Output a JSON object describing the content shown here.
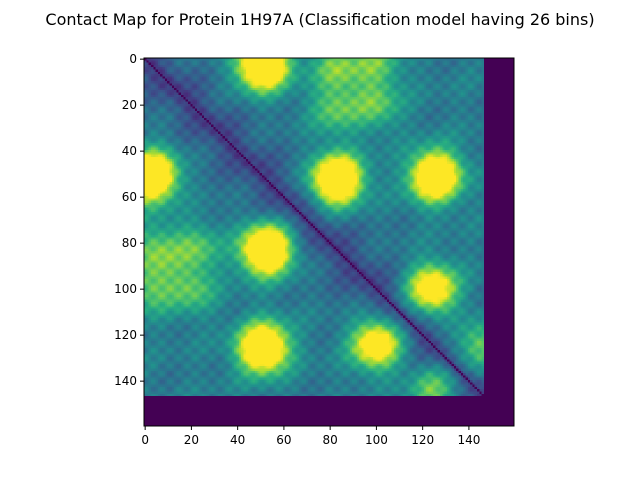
{
  "chart_data": {
    "type": "heatmap",
    "title": "Contact Map for Protein 1H97A (Classification model having 26 bins)",
    "xlabel": "",
    "ylabel": "",
    "matrix_size": 160,
    "data_extent": 147,
    "padding_value": 0,
    "diagonal_value": 0,
    "value_range": [
      0,
      25
    ],
    "colormap": "viridis",
    "xlim": [
      -0.5,
      159.5
    ],
    "ylim": [
      159.5,
      -0.5
    ],
    "y_axis_inverted": true,
    "grid": false,
    "x_ticks": [
      0,
      20,
      40,
      60,
      80,
      100,
      120,
      140
    ],
    "y_ticks": [
      0,
      20,
      40,
      60,
      80,
      100,
      120,
      140
    ],
    "hotspots": [
      {
        "row": 2,
        "col": 52,
        "value": 25
      },
      {
        "row": 2,
        "col": 100,
        "value": 18
      },
      {
        "row": 50,
        "col": 3,
        "value": 24
      },
      {
        "row": 52,
        "col": 83,
        "value": 24
      },
      {
        "row": 50,
        "col": 126,
        "value": 23
      },
      {
        "row": 83,
        "col": 53,
        "value": 25
      },
      {
        "row": 83,
        "col": 4,
        "value": 19
      },
      {
        "row": 100,
        "col": 124,
        "value": 20
      },
      {
        "row": 125,
        "col": 52,
        "value": 24
      },
      {
        "row": 124,
        "col": 100,
        "value": 21
      },
      {
        "row": 100,
        "col": 20,
        "value": 18
      },
      {
        "row": 22,
        "col": 82,
        "value": 18
      },
      {
        "row": 125,
        "col": 144,
        "value": 20
      }
    ]
  }
}
